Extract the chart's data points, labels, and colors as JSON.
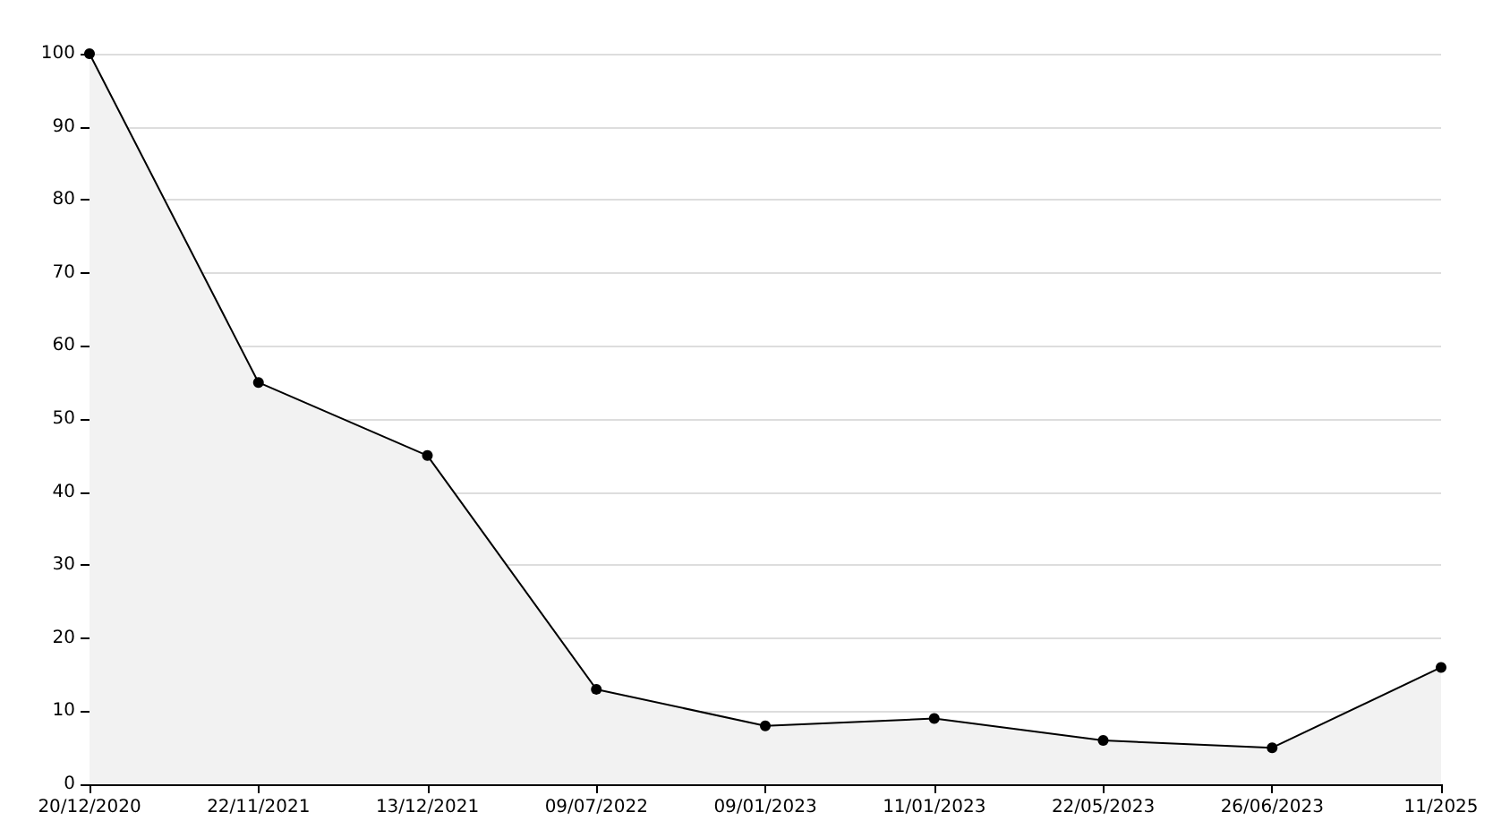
{
  "chart_data": {
    "type": "area",
    "categories": [
      "20/12/2020",
      "22/11/2021",
      "13/12/2021",
      "09/07/2022",
      "09/01/2023",
      "11/01/2023",
      "22/05/2023",
      "26/06/2023",
      "11/2025"
    ],
    "series": [
      {
        "color": "#000000",
        "values": [
          100,
          55,
          45,
          13,
          8,
          9,
          6,
          5,
          16
        ]
      }
    ],
    "ylim": [
      0,
      100
    ],
    "yticks": [
      0,
      10,
      20,
      30,
      40,
      50,
      60,
      70,
      80,
      90,
      100
    ],
    "grid": "y",
    "marker": "circle",
    "line_style": "solid"
  }
}
